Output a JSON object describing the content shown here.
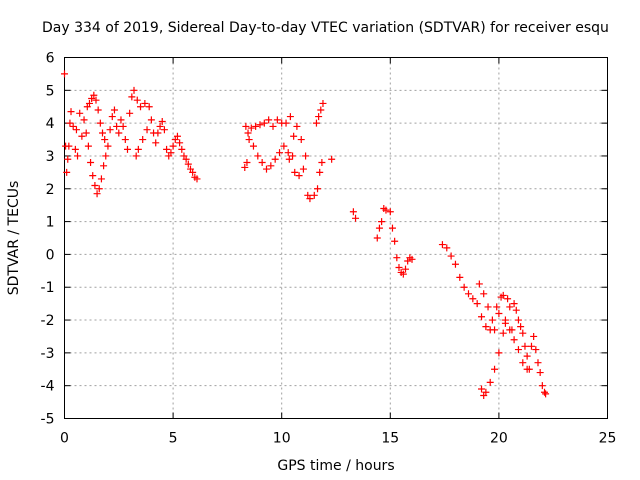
{
  "chart_data": {
    "type": "scatter",
    "title": "Day 334 of 2019, Sidereal Day-to-day VTEC variation (SDTVAR) for receiver esqu",
    "xlabel": "GPS time / hours",
    "ylabel": "SDTVAR / TECUs",
    "xlim": [
      0,
      25
    ],
    "ylim": [
      -5,
      6
    ],
    "xticks": [
      0,
      5,
      10,
      15,
      20,
      25
    ],
    "yticks": [
      -5,
      -4,
      -3,
      -2,
      -1,
      0,
      1,
      2,
      3,
      4,
      5,
      6
    ],
    "xtick_labels": [
      "0",
      "5",
      "10",
      "15",
      "20",
      "25"
    ],
    "ytick_labels": [
      "-5",
      "-4",
      "-3",
      "-2",
      "-1",
      "0",
      "1",
      "2",
      "3",
      "4",
      "5",
      "6"
    ],
    "grid": true,
    "marker": "+",
    "series": [
      {
        "name": "SDTVAR",
        "color": "#ff0000",
        "points": [
          [
            0.0,
            5.5
          ],
          [
            0.05,
            3.3
          ],
          [
            0.1,
            2.5
          ],
          [
            0.15,
            2.9
          ],
          [
            0.2,
            3.3
          ],
          [
            0.25,
            4.0
          ],
          [
            0.3,
            4.35
          ],
          [
            0.4,
            3.9
          ],
          [
            0.5,
            3.2
          ],
          [
            0.55,
            3.8
          ],
          [
            0.6,
            3.0
          ],
          [
            0.7,
            4.3
          ],
          [
            0.8,
            3.6
          ],
          [
            0.9,
            4.1
          ],
          [
            1.0,
            3.7
          ],
          [
            1.05,
            4.5
          ],
          [
            1.1,
            3.3
          ],
          [
            1.15,
            4.6
          ],
          [
            1.2,
            2.8
          ],
          [
            1.25,
            4.75
          ],
          [
            1.3,
            2.4
          ],
          [
            1.35,
            4.85
          ],
          [
            1.4,
            2.1
          ],
          [
            1.45,
            4.7
          ],
          [
            1.5,
            1.85
          ],
          [
            1.55,
            4.4
          ],
          [
            1.6,
            2.0
          ],
          [
            1.65,
            4.0
          ],
          [
            1.7,
            2.3
          ],
          [
            1.75,
            3.7
          ],
          [
            1.8,
            2.7
          ],
          [
            1.85,
            3.5
          ],
          [
            1.9,
            3.0
          ],
          [
            2.0,
            3.3
          ],
          [
            2.1,
            3.8
          ],
          [
            2.2,
            4.2
          ],
          [
            2.3,
            4.4
          ],
          [
            2.4,
            3.9
          ],
          [
            2.5,
            3.7
          ],
          [
            2.6,
            4.1
          ],
          [
            2.7,
            3.9
          ],
          [
            2.8,
            3.5
          ],
          [
            2.9,
            3.2
          ],
          [
            3.0,
            4.3
          ],
          [
            3.1,
            4.8
          ],
          [
            3.2,
            5.0
          ],
          [
            3.3,
            3.0
          ],
          [
            3.35,
            4.7
          ],
          [
            3.4,
            3.2
          ],
          [
            3.5,
            4.5
          ],
          [
            3.6,
            3.5
          ],
          [
            3.7,
            4.6
          ],
          [
            3.8,
            3.8
          ],
          [
            3.9,
            4.5
          ],
          [
            4.0,
            4.1
          ],
          [
            4.1,
            3.7
          ],
          [
            4.2,
            3.4
          ],
          [
            4.3,
            3.7
          ],
          [
            4.4,
            3.9
          ],
          [
            4.5,
            4.05
          ],
          [
            4.6,
            3.8
          ],
          [
            4.7,
            3.2
          ],
          [
            4.8,
            3.0
          ],
          [
            4.9,
            3.1
          ],
          [
            5.0,
            3.3
          ],
          [
            5.1,
            3.5
          ],
          [
            5.2,
            3.6
          ],
          [
            5.3,
            3.4
          ],
          [
            5.4,
            3.2
          ],
          [
            5.5,
            3.0
          ],
          [
            5.6,
            2.9
          ],
          [
            5.7,
            2.75
          ],
          [
            5.8,
            2.6
          ],
          [
            5.9,
            2.5
          ],
          [
            6.0,
            2.35
          ],
          [
            6.1,
            2.3
          ],
          [
            8.3,
            2.65
          ],
          [
            8.35,
            3.9
          ],
          [
            8.4,
            2.8
          ],
          [
            8.45,
            3.7
          ],
          [
            8.5,
            3.5
          ],
          [
            8.6,
            3.85
          ],
          [
            8.7,
            3.3
          ],
          [
            8.8,
            3.9
          ],
          [
            8.9,
            3.0
          ],
          [
            9.0,
            3.95
          ],
          [
            9.1,
            2.8
          ],
          [
            9.2,
            4.0
          ],
          [
            9.3,
            2.6
          ],
          [
            9.4,
            4.1
          ],
          [
            9.5,
            2.7
          ],
          [
            9.6,
            3.9
          ],
          [
            9.7,
            2.9
          ],
          [
            9.8,
            4.1
          ],
          [
            9.9,
            3.1
          ],
          [
            10.0,
            4.0
          ],
          [
            10.1,
            3.3
          ],
          [
            10.2,
            4.0
          ],
          [
            10.3,
            3.1
          ],
          [
            10.35,
            2.9
          ],
          [
            10.4,
            4.2
          ],
          [
            10.5,
            3.0
          ],
          [
            10.55,
            3.6
          ],
          [
            10.6,
            2.5
          ],
          [
            10.7,
            3.9
          ],
          [
            10.8,
            2.4
          ],
          [
            10.9,
            3.5
          ],
          [
            11.0,
            2.6
          ],
          [
            11.1,
            3.0
          ],
          [
            11.2,
            1.8
          ],
          [
            11.3,
            1.7
          ],
          [
            11.5,
            1.8
          ],
          [
            11.6,
            4.0
          ],
          [
            11.65,
            2.0
          ],
          [
            11.7,
            4.2
          ],
          [
            11.75,
            2.5
          ],
          [
            11.8,
            4.4
          ],
          [
            11.85,
            2.8
          ],
          [
            11.9,
            4.6
          ],
          [
            12.3,
            2.9
          ],
          [
            13.3,
            1.3
          ],
          [
            13.4,
            1.1
          ],
          [
            14.4,
            0.5
          ],
          [
            14.5,
            0.8
          ],
          [
            14.6,
            1.0
          ],
          [
            14.7,
            1.4
          ],
          [
            14.8,
            1.35
          ],
          [
            15.0,
            1.3
          ],
          [
            15.1,
            0.8
          ],
          [
            15.2,
            0.4
          ],
          [
            15.3,
            -0.1
          ],
          [
            15.4,
            -0.4
          ],
          [
            15.5,
            -0.55
          ],
          [
            15.6,
            -0.6
          ],
          [
            15.7,
            -0.45
          ],
          [
            15.8,
            -0.2
          ],
          [
            15.9,
            -0.1
          ],
          [
            16.0,
            -0.15
          ],
          [
            17.4,
            0.3
          ],
          [
            17.6,
            0.2
          ],
          [
            17.8,
            -0.05
          ],
          [
            18.0,
            -0.3
          ],
          [
            18.2,
            -0.7
          ],
          [
            18.4,
            -1.0
          ],
          [
            18.6,
            -1.2
          ],
          [
            18.8,
            -1.35
          ],
          [
            19.0,
            -1.5
          ],
          [
            19.1,
            -0.9
          ],
          [
            19.2,
            -1.9
          ],
          [
            19.3,
            -1.2
          ],
          [
            19.4,
            -2.2
          ],
          [
            19.5,
            -1.6
          ],
          [
            19.6,
            -2.3
          ],
          [
            19.7,
            -2.0
          ],
          [
            19.8,
            -2.3
          ],
          [
            19.9,
            -1.6
          ],
          [
            20.0,
            -1.8
          ],
          [
            20.1,
            -1.3
          ],
          [
            20.2,
            -1.25
          ],
          [
            20.3,
            -2.0
          ],
          [
            20.4,
            -1.35
          ],
          [
            20.5,
            -1.6
          ],
          [
            20.6,
            -2.3
          ],
          [
            20.7,
            -1.5
          ],
          [
            20.8,
            -1.7
          ],
          [
            20.9,
            -2.0
          ],
          [
            21.0,
            -2.2
          ],
          [
            21.1,
            -2.4
          ],
          [
            21.2,
            -2.8
          ],
          [
            21.3,
            -3.1
          ],
          [
            21.4,
            -3.5
          ],
          [
            21.5,
            -2.8
          ],
          [
            21.6,
            -2.5
          ],
          [
            21.7,
            -2.9
          ],
          [
            21.8,
            -3.3
          ],
          [
            21.9,
            -3.6
          ],
          [
            22.0,
            -4.0
          ],
          [
            22.1,
            -4.2
          ],
          [
            22.15,
            -4.25
          ],
          [
            19.2,
            -4.1
          ],
          [
            19.3,
            -4.3
          ],
          [
            19.4,
            -4.2
          ],
          [
            19.6,
            -3.9
          ],
          [
            19.8,
            -3.5
          ],
          [
            20.0,
            -3.0
          ],
          [
            20.2,
            -2.4
          ],
          [
            20.3,
            -2.1
          ],
          [
            20.5,
            -2.3
          ],
          [
            20.7,
            -2.6
          ],
          [
            20.9,
            -2.9
          ],
          [
            21.1,
            -3.3
          ],
          [
            21.3,
            -3.5
          ]
        ]
      }
    ]
  }
}
